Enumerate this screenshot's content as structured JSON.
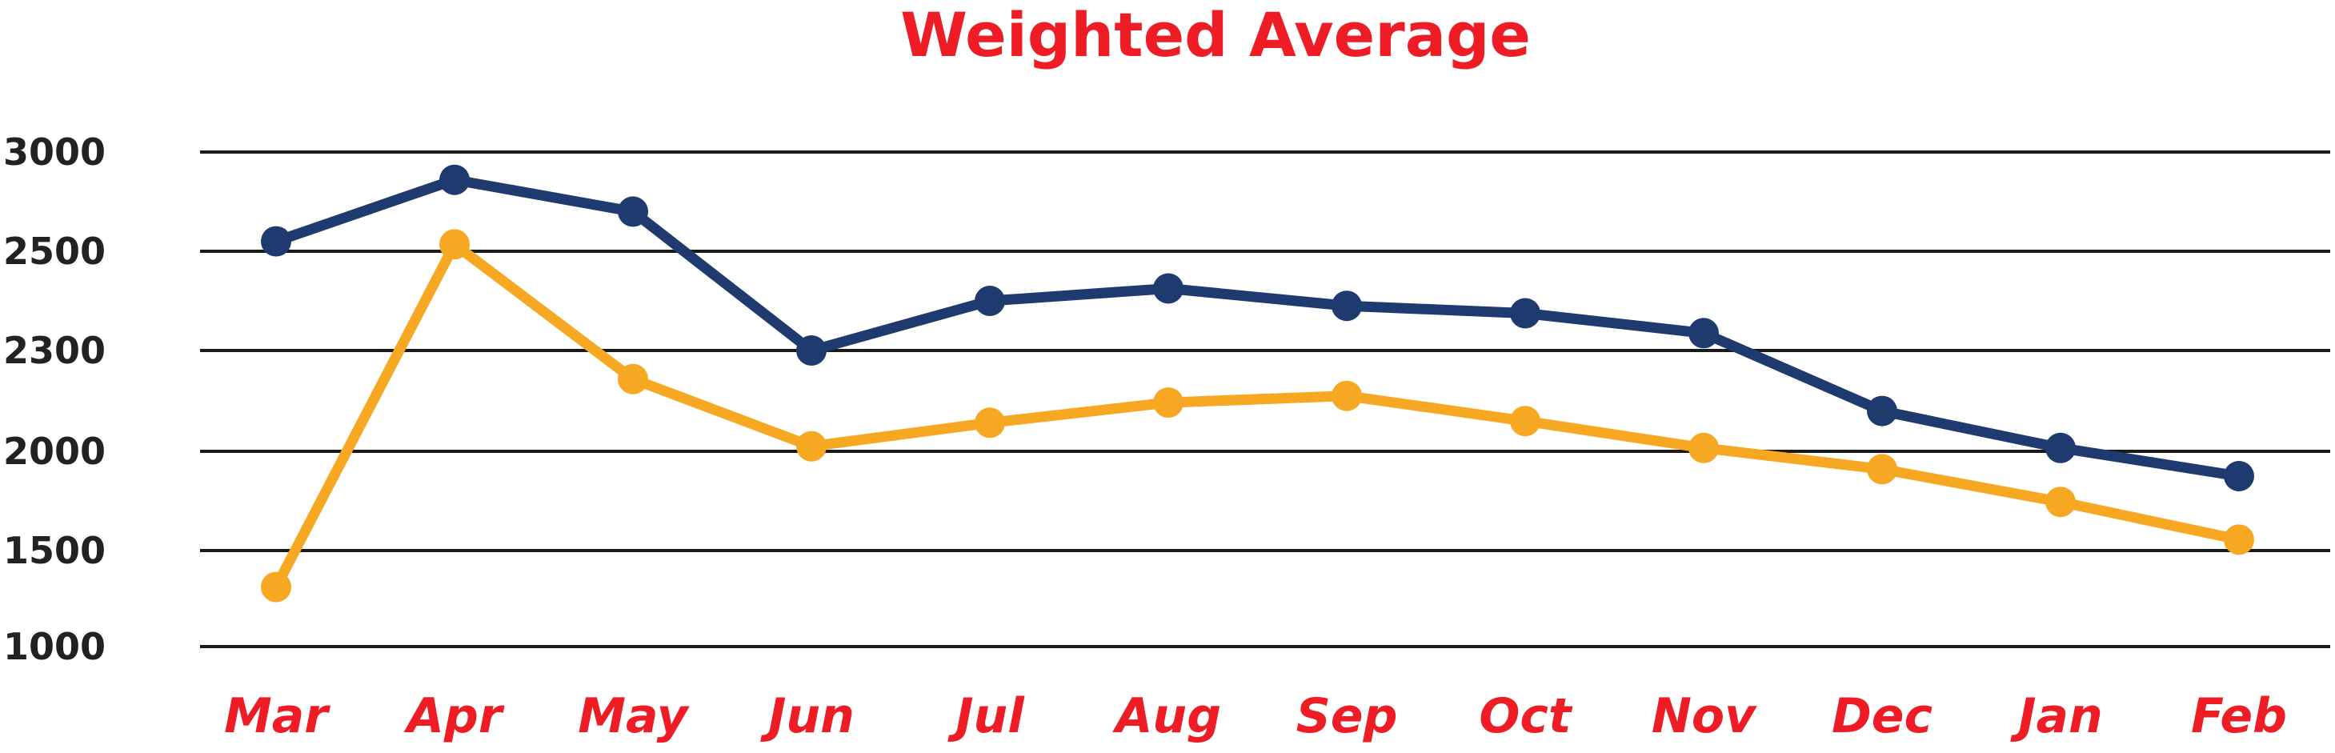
{
  "chart_data": {
    "type": "line",
    "title": "Weighted Average",
    "xlabel": "",
    "ylabel": "",
    "grid": true,
    "legend": "none",
    "categories": [
      "Mar",
      "Apr",
      "May",
      "Jun",
      "Jul",
      "Aug",
      "Sep",
      "Oct",
      "Nov",
      "Dec",
      "Jan",
      "Feb"
    ],
    "y_ticks": [
      "1000",
      "1500",
      "2000",
      "2300",
      "2500",
      "3000"
    ],
    "series": [
      {
        "color": "#1f3a6e",
        "values": [
          2550,
          2860,
          2700,
          2300,
          2400,
          2425,
          2390,
          2375,
          2335,
          2120,
          2010,
          1875
        ]
      },
      {
        "color": "#f7a823",
        "values": [
          1310,
          2535,
          2215,
          2015,
          2085,
          2145,
          2165,
          2090,
          2010,
          1910,
          1745,
          1555
        ]
      }
    ],
    "colors": {
      "title": "#ee1c25",
      "x_labels": "#ee1c25",
      "y_labels": "#222222",
      "grid": "#1a1a1a"
    }
  }
}
